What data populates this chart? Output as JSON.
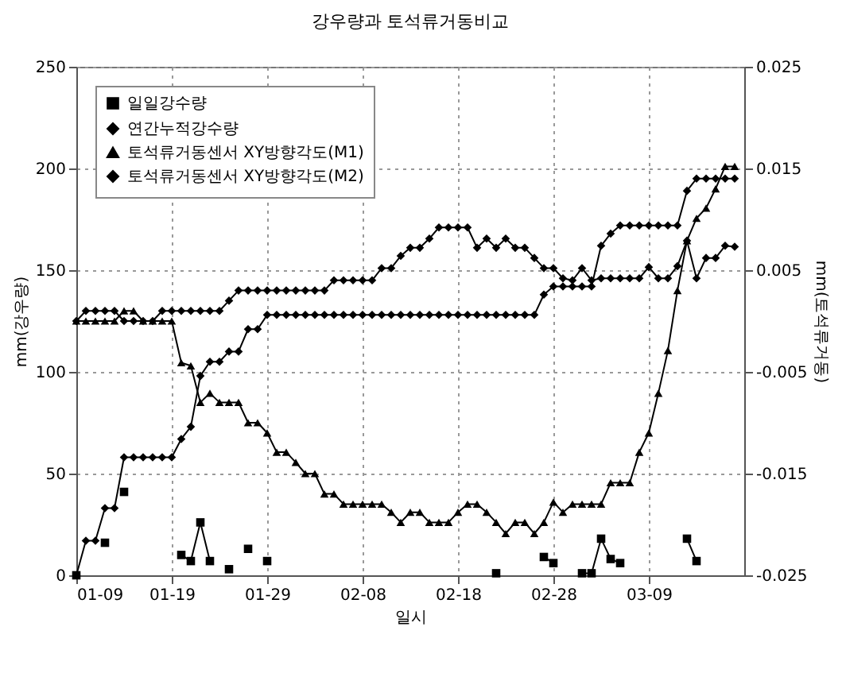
{
  "chart_data": {
    "type": "line",
    "title": "강우량과 토석류거동비교",
    "xlabel": "일시",
    "ylabel": "mm(강우량)",
    "y2label": "mm(토석류거동)",
    "x": [
      "--01-09",
      "--01-10",
      "--01-11",
      "--01-12",
      "--01-13",
      "--01-14",
      "--01-15",
      "--01-16",
      "--01-17",
      "--01-18",
      "--01-19",
      "--01-20",
      "--01-21",
      "--01-22",
      "--01-23",
      "--01-24",
      "--01-25",
      "--01-26",
      "--01-27",
      "--01-28",
      "--01-29",
      "--01-30",
      "--01-31",
      "--02-01",
      "--02-02",
      "--02-03",
      "--02-04",
      "--02-05",
      "--02-06",
      "--02-07",
      "--02-08",
      "--02-09",
      "--02-10",
      "--02-11",
      "--02-12",
      "--02-13",
      "--02-14",
      "--02-15",
      "--02-16",
      "--02-17",
      "--02-18",
      "--02-19",
      "--02-20",
      "--02-21",
      "--02-22",
      "--02-23",
      "--02-24",
      "--02-25",
      "--02-26",
      "--02-27",
      "--02-28",
      "--02-29",
      "--03-01",
      "--03-02",
      "--03-03",
      "--03-04",
      "--03-05",
      "--03-06",
      "--03-07",
      "--03-08",
      "--03-09",
      "--03-10",
      "--03-11",
      "--03-12",
      "--03-13",
      "--03-14",
      "--03-15",
      "--03-16",
      "--03-17",
      "--03-18"
    ],
    "xlim": [
      "--01-09",
      "--03-19"
    ],
    "xticks": [
      {
        "value": "--01-09",
        "label": "01-09"
      },
      {
        "value": "--01-19",
        "label": "01-19"
      },
      {
        "value": "--01-29",
        "label": "01-29"
      },
      {
        "value": "--02-08",
        "label": "02-08"
      },
      {
        "value": "--02-18",
        "label": "02-18"
      },
      {
        "value": "--02-28",
        "label": "02-28"
      },
      {
        "value": "--03-09",
        "label": "03-09"
      }
    ],
    "ylim": [
      0,
      250
    ],
    "yticks": [
      0,
      50,
      100,
      150,
      200,
      250
    ],
    "y2lim": [
      -0.025,
      0.025
    ],
    "y2ticks": [
      -0.025,
      -0.015,
      -0.005,
      0.005,
      0.015,
      0.025
    ],
    "grid": true,
    "legend": "top left",
    "series": [
      {
        "name": "일일강수량",
        "color": "#000000",
        "marker": "square",
        "values": [
          0,
          null,
          null,
          16,
          null,
          41,
          null,
          null,
          null,
          null,
          null,
          10,
          7,
          26,
          7,
          null,
          3,
          null,
          13,
          null,
          7,
          null,
          null,
          null,
          null,
          null,
          null,
          null,
          null,
          null,
          null,
          null,
          null,
          null,
          null,
          null,
          null,
          null,
          null,
          null,
          null,
          null,
          null,
          null,
          1,
          null,
          null,
          null,
          null,
          9,
          6,
          null,
          null,
          1,
          1,
          18,
          8,
          6,
          null,
          null,
          null,
          null,
          null,
          null,
          18,
          7,
          null,
          null,
          null,
          null
        ]
      },
      {
        "name": "연간누적강수량",
        "color": "#000000",
        "marker": "diamond",
        "values": [
          0,
          17,
          17,
          33,
          33,
          58,
          58,
          58,
          58,
          58,
          58,
          67,
          73,
          98,
          105,
          105,
          110,
          110,
          121,
          121,
          128,
          128,
          128,
          128,
          128,
          128,
          128,
          128,
          128,
          128,
          128,
          128,
          128,
          128,
          128,
          128,
          128,
          128,
          128,
          128,
          128,
          128,
          128,
          128,
          128,
          128,
          128,
          128,
          128,
          138,
          142,
          142,
          142,
          142,
          142,
          162,
          168,
          172,
          172,
          172,
          172,
          172,
          172,
          172,
          189,
          195,
          195,
          195,
          195,
          195
        ]
      },
      {
        "name": "토석류거동센서 XY방향각도(M1)",
        "color": "#000000",
        "marker": "triangle",
        "axis": "y2",
        "values": [
          0,
          0,
          0,
          0,
          0,
          0.001,
          0.001,
          0,
          0,
          0,
          0,
          -0.0041,
          -0.0044,
          -0.008,
          -0.0071,
          -0.008,
          -0.008,
          -0.008,
          -0.01,
          -0.01,
          -0.011,
          -0.0129,
          -0.0129,
          -0.0139,
          -0.015,
          -0.015,
          -0.017,
          -0.017,
          -0.018,
          -0.018,
          -0.018,
          -0.018,
          -0.018,
          -0.0188,
          -0.0198,
          -0.0188,
          -0.0188,
          -0.0198,
          -0.0198,
          -0.0198,
          -0.0188,
          -0.018,
          -0.018,
          -0.0188,
          -0.0198,
          -0.0209,
          -0.0198,
          -0.0198,
          -0.0209,
          -0.0198,
          -0.0178,
          -0.0188,
          -0.018,
          -0.018,
          -0.018,
          -0.018,
          -0.0159,
          -0.0159,
          -0.0159,
          -0.0129,
          -0.011,
          -0.0071,
          -0.0029,
          0.003,
          0.0079,
          0.0101,
          0.0111,
          0.013,
          0.0152,
          0.0152
        ]
      },
      {
        "name": "토석류거동센서 XY방향각도(M2)",
        "color": "#000000",
        "marker": "diamond",
        "axis": "y2",
        "values": [
          0,
          0.001,
          0.001,
          0.001,
          0.001,
          0,
          0,
          0,
          0,
          0.001,
          0.001,
          0.001,
          0.001,
          0.001,
          0.001,
          0.001,
          0.002,
          0.003,
          0.003,
          0.003,
          0.003,
          0.003,
          0.003,
          0.003,
          0.003,
          0.003,
          0.003,
          0.004,
          0.004,
          0.004,
          0.004,
          0.004,
          0.0052,
          0.0052,
          0.0064,
          0.0072,
          0.0072,
          0.0081,
          0.0092,
          0.0092,
          0.0092,
          0.0092,
          0.0072,
          0.0081,
          0.0072,
          0.0081,
          0.0072,
          0.0072,
          0.0062,
          0.0052,
          0.0052,
          0.0042,
          0.004,
          0.0052,
          0.004,
          0.0042,
          0.0042,
          0.0042,
          0.0042,
          0.0042,
          0.0053,
          0.0042,
          0.0042,
          0.0054,
          0.0079,
          0.0042,
          0.0062,
          0.0062,
          0.0074,
          0.0073
        ]
      }
    ]
  }
}
